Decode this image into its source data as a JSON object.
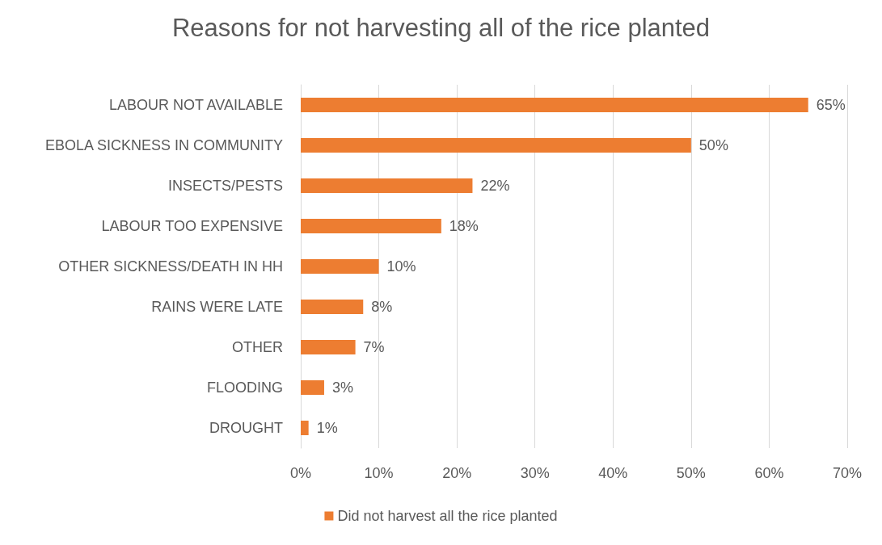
{
  "chart_data": {
    "type": "bar",
    "orientation": "horizontal",
    "title": "Reasons for not harvesting all of the rice planted",
    "categories": [
      "LABOUR NOT AVAILABLE",
      "EBOLA SICKNESS IN COMMUNITY",
      "INSECTS/PESTS",
      "LABOUR TOO EXPENSIVE",
      "OTHER SICKNESS/DEATH IN HH",
      "RAINS WERE LATE",
      "OTHER",
      "FLOODING",
      "DROUGHT"
    ],
    "series": [
      {
        "name": "Did not harvest all the rice planted",
        "color": "#ed7d31",
        "values": [
          65,
          50,
          22,
          18,
          10,
          8,
          7,
          3,
          1
        ],
        "value_labels": [
          "65%",
          "50%",
          "22%",
          "18%",
          "10%",
          "8%",
          "7%",
          "3%",
          "1%"
        ]
      }
    ],
    "xlim": [
      0,
      70
    ],
    "xticks": [
      {
        "value": 0,
        "label": "0%"
      },
      {
        "value": 10,
        "label": "10%"
      },
      {
        "value": 20,
        "label": "20%"
      },
      {
        "value": 30,
        "label": "30%"
      },
      {
        "value": 40,
        "label": "40%"
      },
      {
        "value": 50,
        "label": "50%"
      },
      {
        "value": 60,
        "label": "60%"
      },
      {
        "value": 70,
        "label": "70%"
      }
    ],
    "grid": "x",
    "legend": "bottom"
  }
}
